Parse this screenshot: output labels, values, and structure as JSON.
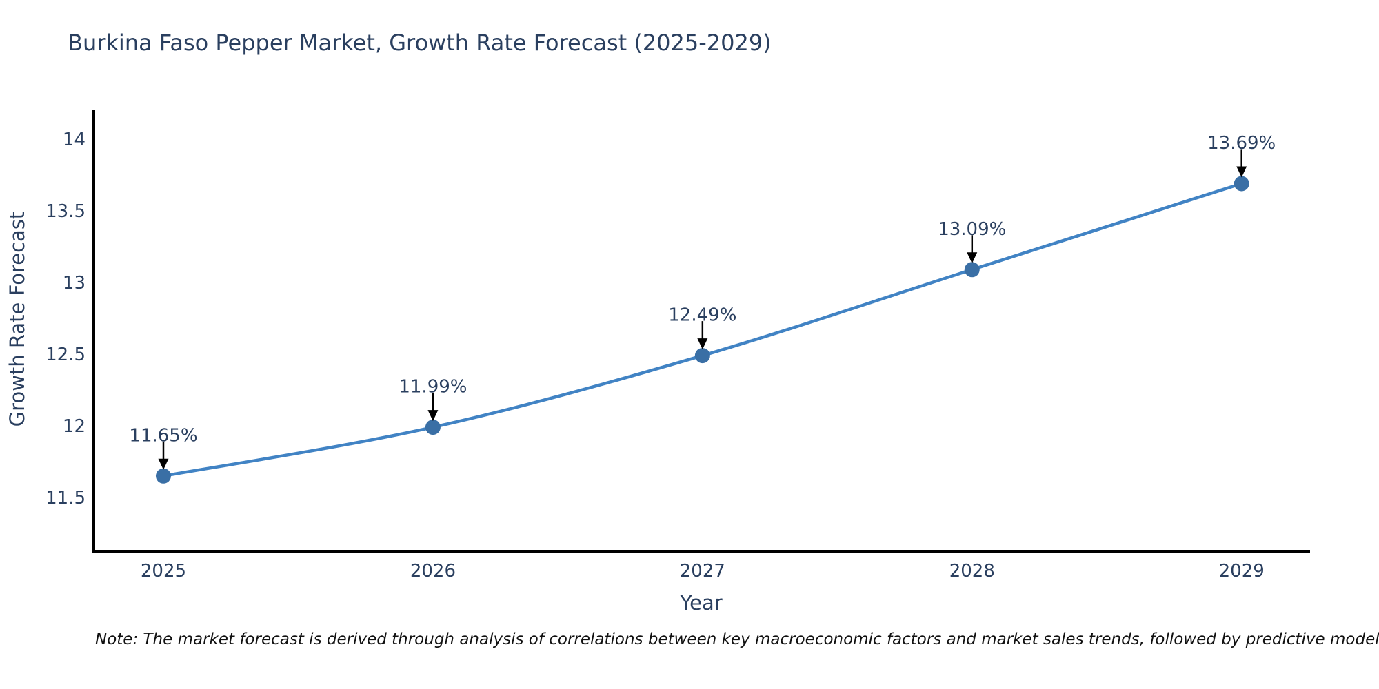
{
  "title": "Burkina Faso Pepper Market, Growth Rate Forecast (2025-2029)",
  "note": "Note: The market forecast is derived through analysis of correlations between key macroeconomic factors and market sales trends, followed by predictive modeling to project future sal",
  "chart_data": {
    "type": "line",
    "title": "Burkina Faso Pepper Market, Growth Rate Forecast (2025-2029)",
    "xlabel": "Year",
    "ylabel": "Growth Rate Forecast",
    "categories": [
      "2025",
      "2026",
      "2027",
      "2028",
      "2029"
    ],
    "x": [
      2025,
      2026,
      2027,
      2028,
      2029
    ],
    "values": [
      11.65,
      11.99,
      12.49,
      13.09,
      13.69
    ],
    "point_labels": [
      "11.65%",
      "11.99%",
      "12.49%",
      "13.09%",
      "13.69%"
    ],
    "yticks": [
      11.5,
      12,
      12.5,
      13,
      13.5,
      14
    ],
    "xlim": [
      2024.734,
      2029.254
    ],
    "ylim": [
      11.125,
      14.202
    ],
    "grid": false,
    "legend": "none",
    "line_shape": "spline",
    "line_color": "#4183c4",
    "marker_color": "#3a6fa5",
    "axis_color": "#000000",
    "arrow_color": "#000000",
    "text_color": "#2a3f5f"
  }
}
